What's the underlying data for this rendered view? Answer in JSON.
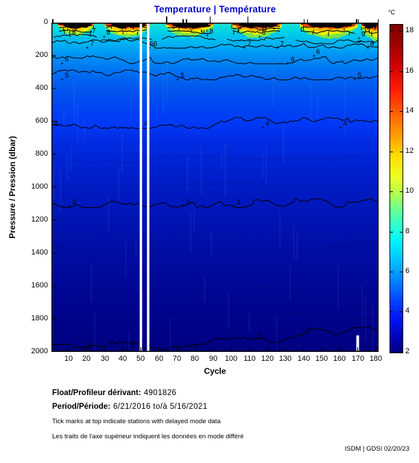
{
  "title": "Temperature | Température",
  "title_color": "#0000CC",
  "x_axis": {
    "label": "Cycle",
    "ticks": [
      10,
      20,
      30,
      40,
      50,
      60,
      70,
      80,
      90,
      100,
      110,
      120,
      130,
      140,
      150,
      160,
      170,
      180
    ],
    "min": 1,
    "max": 182
  },
  "y_axis": {
    "label": "Pressure / Pression (dbar)",
    "ticks": [
      0,
      200,
      400,
      600,
      800,
      1000,
      1200,
      1400,
      1600,
      1800,
      2000
    ],
    "min": 0,
    "max": 2000,
    "inverted": true
  },
  "colorbar": {
    "unit": "°C",
    "ticks": [
      18,
      16,
      14,
      12,
      10,
      8,
      6,
      4,
      2
    ],
    "vmin": 1.93,
    "vmax": 18.35,
    "colormap": "jet",
    "stops": [
      [
        "#7E0000",
        0
      ],
      [
        "#A30000",
        6
      ],
      [
        "#D60000",
        13
      ],
      [
        "#FF1E00",
        20
      ],
      [
        "#FF6000",
        27
      ],
      [
        "#FFA000",
        34
      ],
      [
        "#FFDC00",
        40
      ],
      [
        "#F2FC20",
        46
      ],
      [
        "#B8FF48",
        51
      ],
      [
        "#72FF8E",
        56
      ],
      [
        "#30FFCE",
        61
      ],
      [
        "#00F4FF",
        66
      ],
      [
        "#00C2FF",
        72
      ],
      [
        "#0084FF",
        78
      ],
      [
        "#0046FF",
        84
      ],
      [
        "#0014F4",
        90
      ],
      [
        "#0002C0",
        95
      ],
      [
        "#000086",
        100
      ]
    ]
  },
  "chart_data": {
    "type": "heatmap",
    "subtype": "filled-contour-section",
    "title": "Temperature | Température",
    "xlabel": "Cycle",
    "ylabel": "Pressure / Pression (dbar)",
    "x_range": [
      1,
      182
    ],
    "y_range": [
      0,
      2000
    ],
    "y_inverted": true,
    "x_ticks": [
      10,
      20,
      30,
      40,
      50,
      60,
      70,
      80,
      90,
      100,
      110,
      120,
      130,
      140,
      150,
      160,
      170,
      180
    ],
    "y_ticks": [
      0,
      200,
      400,
      600,
      800,
      1000,
      1200,
      1400,
      1600,
      1800,
      2000
    ],
    "colorbar": {
      "label": "°C",
      "ticks": [
        2,
        4,
        6,
        8,
        10,
        12,
        14,
        16,
        18
      ],
      "colormap": "jet"
    },
    "contours": [
      {
        "level_c": 7,
        "mean_depth_dbar": 125,
        "label_cycles": [
          23,
          110
        ]
      },
      {
        "level_c": 6,
        "mean_depth_dbar": 220,
        "label_cycles": [
          9,
          134
        ]
      },
      {
        "level_c": 5,
        "mean_depth_dbar": 318,
        "label_cycles": [
          9,
          73,
          171
        ]
      },
      {
        "level_c": 4,
        "mean_depth_dbar": 610,
        "label_cycles": [
          3,
          53,
          120,
          163
        ]
      },
      {
        "level_c": 3,
        "mean_depth_dbar": 1090,
        "label_cycles": [
          13,
          76,
          104
        ]
      },
      {
        "level_c": 2,
        "mean_depth_dbar": 1935,
        "label_cycles": [
          21,
          45,
          116,
          142
        ]
      }
    ],
    "surface_contour_labels": [
      {
        "t": "8",
        "c": 13,
        "d": 55
      },
      {
        "t": "7",
        "c": 24,
        "d": 48
      },
      {
        "t": "8",
        "c": 32,
        "d": 58
      },
      {
        "t": "66",
        "c": 57,
        "d": 128
      },
      {
        "t": "8",
        "c": 89,
        "d": 50
      },
      {
        "t": "8",
        "c": 118,
        "d": 58
      },
      {
        "t": "7",
        "c": 128,
        "d": 128
      },
      {
        "t": "6",
        "c": 148,
        "d": 175
      },
      {
        "t": "9",
        "c": 173,
        "d": 68
      },
      {
        "t": "8",
        "c": 178,
        "d": 125
      }
    ],
    "surface_warm_events_cycles": [
      [
        4,
        24
      ],
      [
        30,
        55
      ],
      [
        64,
        90
      ],
      [
        100,
        128
      ],
      [
        138,
        170
      ],
      [
        172,
        182
      ]
    ],
    "surface_max_temp_c": 18,
    "deep_min_temp_c": 2,
    "missing_data_cycles": [
      50,
      54
    ],
    "missing_deep_segment": {
      "cycle": 170,
      "depth_range_dbar": [
        1900,
        2000
      ]
    },
    "delayed_mode_tick_cycles": [
      1,
      64,
      73,
      75,
      88,
      109,
      140,
      142,
      169,
      170,
      181
    ]
  },
  "footer": {
    "float_label": "Float/Profileur dérivant:",
    "float_value": "4901826",
    "period_label": "Period/Période:",
    "period_value": "6/21/2016  to/à  5/16/2021",
    "note_en": "Tick marks at top indicate stations with delayed mode data",
    "note_fr": "Les traits de l'axe supérieur indiquent les données en mode différé",
    "credit": "ISDM | GDSI  02/20/23"
  }
}
